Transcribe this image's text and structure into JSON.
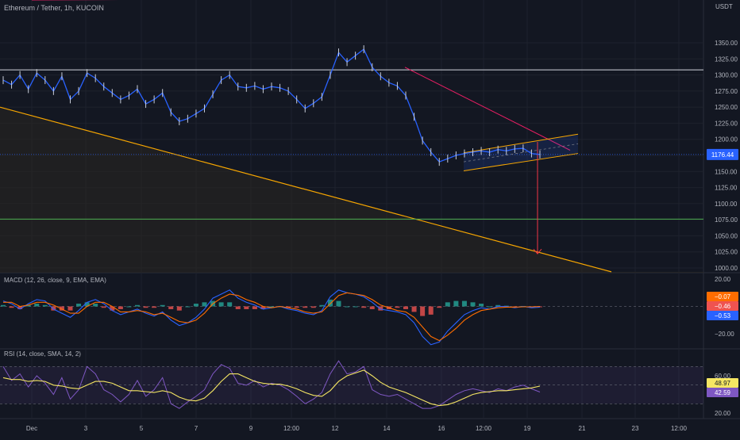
{
  "header": {
    "symbol_title": "Ethereum / Tether, 1h, KUCOIN"
  },
  "colors": {
    "background": "#131722",
    "grid": "#1e222d",
    "price_line": "#2962ff",
    "resistance_line": "#d1d4dc",
    "support_line": "#4caf50",
    "trend_line": "#f7a600",
    "downtrend_line": "#e91e63",
    "arrow": "#f23645",
    "macd": "#2962ff",
    "signal": "#ff6d00",
    "hist_up": "#26a69a",
    "hist_down": "#ef5350",
    "rsi": "#7e57c2",
    "rsi_ma": "#f5e663"
  },
  "chart_data": [
    {
      "type": "line",
      "title": "Ethereum / Tether, 1h, KUCOIN",
      "currency": "USDT",
      "ylim": [
        1000,
        1350
      ],
      "yticks": [
        1000,
        1025,
        1050,
        1075,
        1100,
        1125,
        1150,
        1175,
        1200,
        1225,
        1250,
        1275,
        1300,
        1325,
        1350
      ],
      "ytick_labels": [
        "1000.00",
        "1025.00",
        "1050.00",
        "1075.00",
        "1100.00",
        "1125.00",
        "1150.00",
        "1175.00",
        "1200.00",
        "1225.00",
        "1250.00",
        "1275.00",
        "1300.00",
        "1325.00",
        "1350.00"
      ],
      "xticks": [
        "Dec",
        "3",
        "5",
        "7",
        "9",
        "12:00",
        "12",
        "14",
        "16",
        "12:00",
        "19",
        "21",
        "23",
        "12:00"
      ],
      "series": [
        {
          "values": [
            1292,
            1285,
            1300,
            1278,
            1303,
            1292,
            1275,
            1298,
            1262,
            1275,
            1303,
            1295,
            1282,
            1272,
            1262,
            1268,
            1278,
            1255,
            1262,
            1272,
            1242,
            1228,
            1232,
            1240,
            1248,
            1270,
            1292,
            1300,
            1282,
            1280,
            1283,
            1278,
            1282,
            1280,
            1275,
            1262,
            1248,
            1256,
            1266,
            1300,
            1335,
            1320,
            1330,
            1340,
            1312,
            1298,
            1288,
            1283,
            1268,
            1235,
            1198,
            1180,
            1165,
            1170,
            1175,
            1178,
            1180,
            1182,
            1180,
            1184,
            1182,
            1185,
            1186,
            1178,
            1176.44
          ]
        }
      ],
      "current_price": 1176.44,
      "current_price_label": "1176.44",
      "annotations": {
        "resistance_level": 1308,
        "support_level": 1076,
        "target_level": 1022
      }
    },
    {
      "type": "line",
      "title": "MACD (12, 26, close, 9, EMA, EMA)",
      "yticks": [
        20,
        -20
      ],
      "ytick_labels": [
        "20.00",
        "−20.00"
      ],
      "value_labels": [
        "−0.07",
        "−0.46",
        "−0.53"
      ],
      "series": [
        {
          "name": "MACD",
          "values": [
            4,
            2,
            -2,
            2,
            5,
            4,
            -2,
            -5,
            -8,
            -3,
            3,
            5,
            2,
            -3,
            -6,
            -4,
            -2,
            -5,
            -7,
            -4,
            -10,
            -14,
            -12,
            -8,
            -2,
            6,
            9,
            12,
            6,
            3,
            1,
            -2,
            -1,
            0,
            -2,
            -3,
            -5,
            -6,
            -3,
            7,
            12,
            10,
            9,
            7,
            3,
            -2,
            -3,
            -4,
            -6,
            -12,
            -22,
            -28,
            -26,
            -18,
            -12,
            -6,
            -3,
            -1,
            -2,
            0,
            0,
            -1,
            0,
            -1,
            -0.53
          ]
        },
        {
          "name": "Signal",
          "values": [
            3,
            3,
            0,
            1,
            3,
            3,
            1,
            -2,
            -5,
            -5,
            0,
            3,
            3,
            0,
            -4,
            -4,
            -3,
            -4,
            -6,
            -5,
            -8,
            -11,
            -12,
            -10,
            -5,
            2,
            6,
            9,
            8,
            5,
            3,
            0,
            -1,
            0,
            -1,
            -2,
            -4,
            -5,
            -4,
            2,
            8,
            10,
            9,
            8,
            5,
            1,
            -1,
            -3,
            -4,
            -8,
            -15,
            -22,
            -25,
            -21,
            -16,
            -10,
            -6,
            -3,
            -2,
            -1,
            -0.5,
            -0.5,
            -0.3,
            -0.3,
            -0.07
          ]
        }
      ]
    },
    {
      "type": "line",
      "title": "RSI (14, close, SMA, 14, 2)",
      "yticks": [
        60,
        20
      ],
      "ytick_labels": [
        "60.00",
        "20.00"
      ],
      "value_labels": [
        "48.97",
        "42.59"
      ],
      "series": [
        {
          "name": "RSI",
          "values": [
            70,
            55,
            62,
            48,
            60,
            52,
            40,
            58,
            35,
            45,
            70,
            62,
            45,
            40,
            32,
            40,
            55,
            38,
            45,
            58,
            30,
            25,
            32,
            38,
            45,
            62,
            72,
            68,
            52,
            50,
            55,
            48,
            52,
            50,
            45,
            38,
            30,
            35,
            42,
            62,
            76,
            62,
            64,
            70,
            45,
            40,
            38,
            40,
            35,
            30,
            25,
            25,
            28,
            34,
            40,
            44,
            46,
            44,
            42,
            46,
            44,
            48,
            50,
            46,
            42.59
          ]
        },
        {
          "name": "RSI MA",
          "values": [
            58,
            56,
            56,
            54,
            55,
            54,
            50,
            49,
            47,
            46,
            50,
            54,
            54,
            52,
            48,
            44,
            44,
            43,
            42,
            44,
            42,
            37,
            34,
            33,
            36,
            44,
            54,
            62,
            62,
            58,
            54,
            52,
            51,
            51,
            49,
            46,
            42,
            39,
            38,
            44,
            54,
            60,
            63,
            66,
            60,
            53,
            48,
            45,
            42,
            38,
            34,
            30,
            28,
            29,
            32,
            36,
            40,
            42,
            43,
            44,
            44,
            45,
            46,
            47,
            48.97
          ]
        }
      ]
    }
  ]
}
